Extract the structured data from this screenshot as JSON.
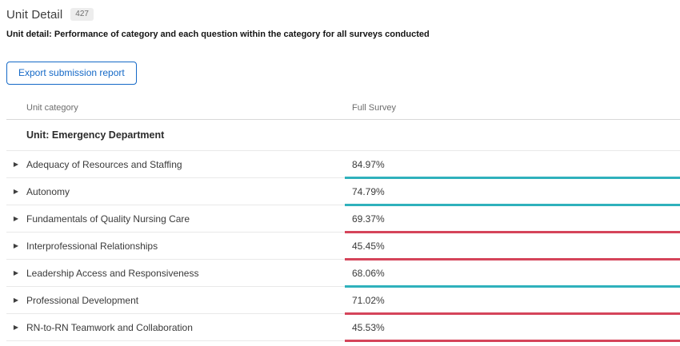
{
  "header": {
    "title": "Unit Detail",
    "badge_count": "427",
    "subtitle": "Unit detail: Performance of category and each question within the category for all surveys conducted"
  },
  "toolbar": {
    "export_button_label": "Export submission report"
  },
  "table": {
    "columns": {
      "category": "Unit category",
      "full_survey": "Full Survey"
    },
    "group_header": "Unit: Emergency Department",
    "rows": [
      {
        "category": "Adequacy of Resources and Staffing",
        "full_survey": "84.97%",
        "bar": "teal"
      },
      {
        "category": "Autonomy",
        "full_survey": "74.79%",
        "bar": "teal"
      },
      {
        "category": "Fundamentals of Quality Nursing Care",
        "full_survey": "69.37%",
        "bar": "red"
      },
      {
        "category": "Interprofessional Relationships",
        "full_survey": "45.45%",
        "bar": "red"
      },
      {
        "category": "Leadership Access and Responsiveness",
        "full_survey": "68.06%",
        "bar": "teal"
      },
      {
        "category": "Professional Development",
        "full_survey": "71.02%",
        "bar": "red"
      },
      {
        "category": "RN-to-RN Teamwork and Collaboration",
        "full_survey": "45.53%",
        "bar": "red"
      }
    ]
  },
  "icons": {
    "expand_row": "▶"
  },
  "colors": {
    "teal": "#2FB1BC",
    "red": "#D5445A",
    "accent_blue": "#1569C7"
  }
}
